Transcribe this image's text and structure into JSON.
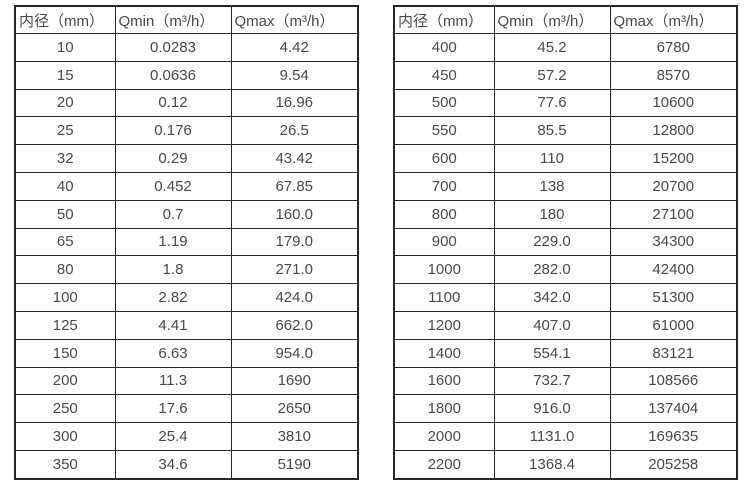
{
  "colors": {
    "background": "#ffffff",
    "text": "#4a4a4a",
    "border": "#262626"
  },
  "tables": [
    {
      "name": "flow-table-small-diameters",
      "headers": [
        "内径（mm）",
        "Qmin（m³/h）",
        "Qmax（m³/h）"
      ],
      "rows": [
        [
          "10",
          "0.0283",
          "4.42"
        ],
        [
          "15",
          "0.0636",
          "9.54"
        ],
        [
          "20",
          "0.12",
          "16.96"
        ],
        [
          "25",
          "0.176",
          "26.5"
        ],
        [
          "32",
          "0.29",
          "43.42"
        ],
        [
          "40",
          "0.452",
          "67.85"
        ],
        [
          "50",
          "0.7",
          "160.0"
        ],
        [
          "65",
          "1.19",
          "179.0"
        ],
        [
          "80",
          "1.8",
          "271.0"
        ],
        [
          "100",
          "2.82",
          "424.0"
        ],
        [
          "125",
          "4.41",
          "662.0"
        ],
        [
          "150",
          "6.63",
          "954.0"
        ],
        [
          "200",
          "11.3",
          "1690"
        ],
        [
          "250",
          "17.6",
          "2650"
        ],
        [
          "300",
          "25.4",
          "3810"
        ],
        [
          "350",
          "34.6",
          "5190"
        ]
      ]
    },
    {
      "name": "flow-table-large-diameters",
      "headers": [
        "内径（mm）",
        "Qmin（m³/h）",
        "Qmax（m³/h）"
      ],
      "rows": [
        [
          "400",
          "45.2",
          "6780"
        ],
        [
          "450",
          "57.2",
          "8570"
        ],
        [
          "500",
          "77.6",
          "10600"
        ],
        [
          "550",
          "85.5",
          "12800"
        ],
        [
          "600",
          "110",
          "15200"
        ],
        [
          "700",
          "138",
          "20700"
        ],
        [
          "800",
          "180",
          "27100"
        ],
        [
          "900",
          "229.0",
          "34300"
        ],
        [
          "1000",
          "282.0",
          "42400"
        ],
        [
          "1100",
          "342.0",
          "51300"
        ],
        [
          "1200",
          "407.0",
          "61000"
        ],
        [
          "1400",
          "554.1",
          "83121"
        ],
        [
          "1600",
          "732.7",
          "108566"
        ],
        [
          "1800",
          "916.0",
          "137404"
        ],
        [
          "2000",
          "1131.0",
          "169635"
        ],
        [
          "2200",
          "1368.4",
          "205258"
        ]
      ]
    }
  ]
}
